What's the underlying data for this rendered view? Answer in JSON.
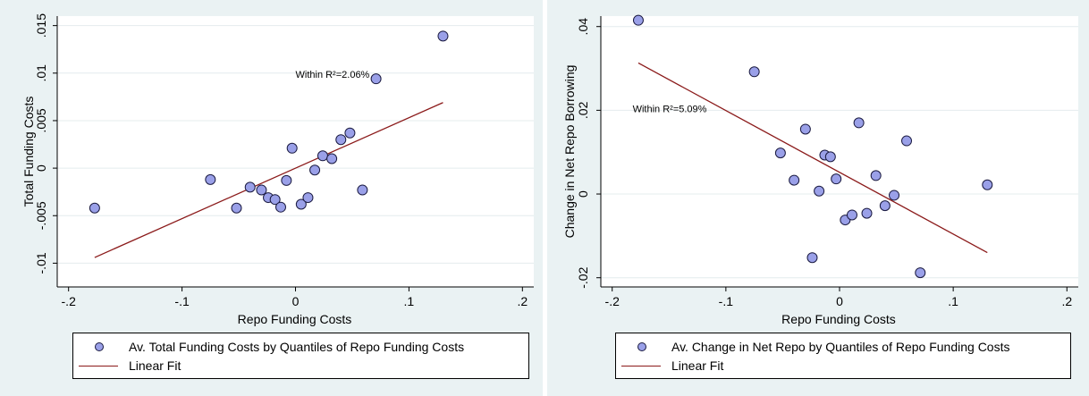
{
  "colors": {
    "background": "#eaf2f3",
    "plot_bg": "#ffffff",
    "marker_fill": "#9aa0e8",
    "marker_edge": "#1a1a40",
    "fit_line": "#8b1a1a",
    "grid": "#e4ecee"
  },
  "chart_data": [
    {
      "type": "scatter",
      "title": "",
      "xlabel": "Repo Funding Costs",
      "ylabel": "Total Funding Costs",
      "xlim": [
        -0.21,
        0.21
      ],
      "ylim": [
        -0.0125,
        0.016
      ],
      "xticks": [
        -0.2,
        -0.1,
        0,
        0.1,
        0.2
      ],
      "xtick_labels": [
        "-.2",
        "-.1",
        "0",
        ".1",
        ".2"
      ],
      "yticks": [
        -0.01,
        -0.005,
        0,
        0.005,
        0.01,
        0.015
      ],
      "ytick_labels": [
        "-.01",
        "-.005",
        "0",
        ".005",
        ".01",
        ".015"
      ],
      "grid": true,
      "annotation": "Within R²=2.06%",
      "annotation_at": [
        0.0,
        0.0095
      ],
      "points": {
        "x": [
          -0.177,
          -0.075,
          -0.052,
          -0.04,
          -0.03,
          -0.024,
          -0.018,
          -0.013,
          -0.008,
          -0.003,
          0.005,
          0.011,
          0.017,
          0.024,
          0.032,
          0.04,
          0.048,
          0.059,
          0.071,
          0.13
        ],
        "y": [
          -0.0042,
          -0.0012,
          -0.0042,
          -0.002,
          -0.0023,
          -0.0031,
          -0.0033,
          -0.0041,
          -0.0013,
          0.0021,
          -0.0038,
          -0.0031,
          -0.0002,
          0.0013,
          0.001,
          0.003,
          0.0037,
          -0.0023,
          0.0094,
          0.0139
        ]
      },
      "fit": {
        "x": [
          -0.177,
          0.13
        ],
        "y": [
          -0.0094,
          0.0069
        ]
      },
      "legend": [
        {
          "kind": "marker",
          "label": "Av. Total Funding Costs by Quantiles of Repo Funding Costs"
        },
        {
          "kind": "line",
          "label": "Linear Fit"
        }
      ]
    },
    {
      "type": "scatter",
      "title": "",
      "xlabel": "Repo Funding Costs",
      "ylabel": "Change in Net Repo Borrowing",
      "xlim": [
        -0.21,
        0.21
      ],
      "ylim": [
        -0.0222,
        0.0425
      ],
      "xticks": [
        -0.2,
        -0.1,
        0,
        0.1,
        0.2
      ],
      "xtick_labels": [
        "-.2",
        "-.1",
        "0",
        ".1",
        ".2"
      ],
      "yticks": [
        -0.02,
        0,
        0.02,
        0.04
      ],
      "ytick_labels": [
        "-.02",
        "0",
        ".02",
        ".04"
      ],
      "grid": true,
      "annotation": "Within R²=5.09%",
      "annotation_at": [
        -0.182,
        0.0195
      ],
      "points": {
        "x": [
          -0.177,
          -0.075,
          -0.052,
          -0.04,
          -0.03,
          -0.024,
          -0.018,
          -0.013,
          -0.008,
          -0.003,
          0.005,
          0.011,
          0.017,
          0.024,
          0.032,
          0.04,
          0.048,
          0.059,
          0.071,
          0.13
        ],
        "y": [
          0.0415,
          0.0292,
          0.0098,
          0.0033,
          0.0155,
          -0.0152,
          0.0007,
          0.0093,
          0.0089,
          0.0036,
          -0.0062,
          -0.005,
          0.017,
          -0.0046,
          0.0044,
          -0.0028,
          -0.0003,
          0.0127,
          -0.0188,
          0.0022
        ]
      },
      "fit": {
        "x": [
          -0.177,
          0.13
        ],
        "y": [
          0.0313,
          -0.014
        ]
      },
      "legend": [
        {
          "kind": "marker",
          "label": "Av. Change in Net Repo by Quantiles of Repo Funding Costs"
        },
        {
          "kind": "line",
          "label": "Linear Fit"
        }
      ]
    }
  ]
}
